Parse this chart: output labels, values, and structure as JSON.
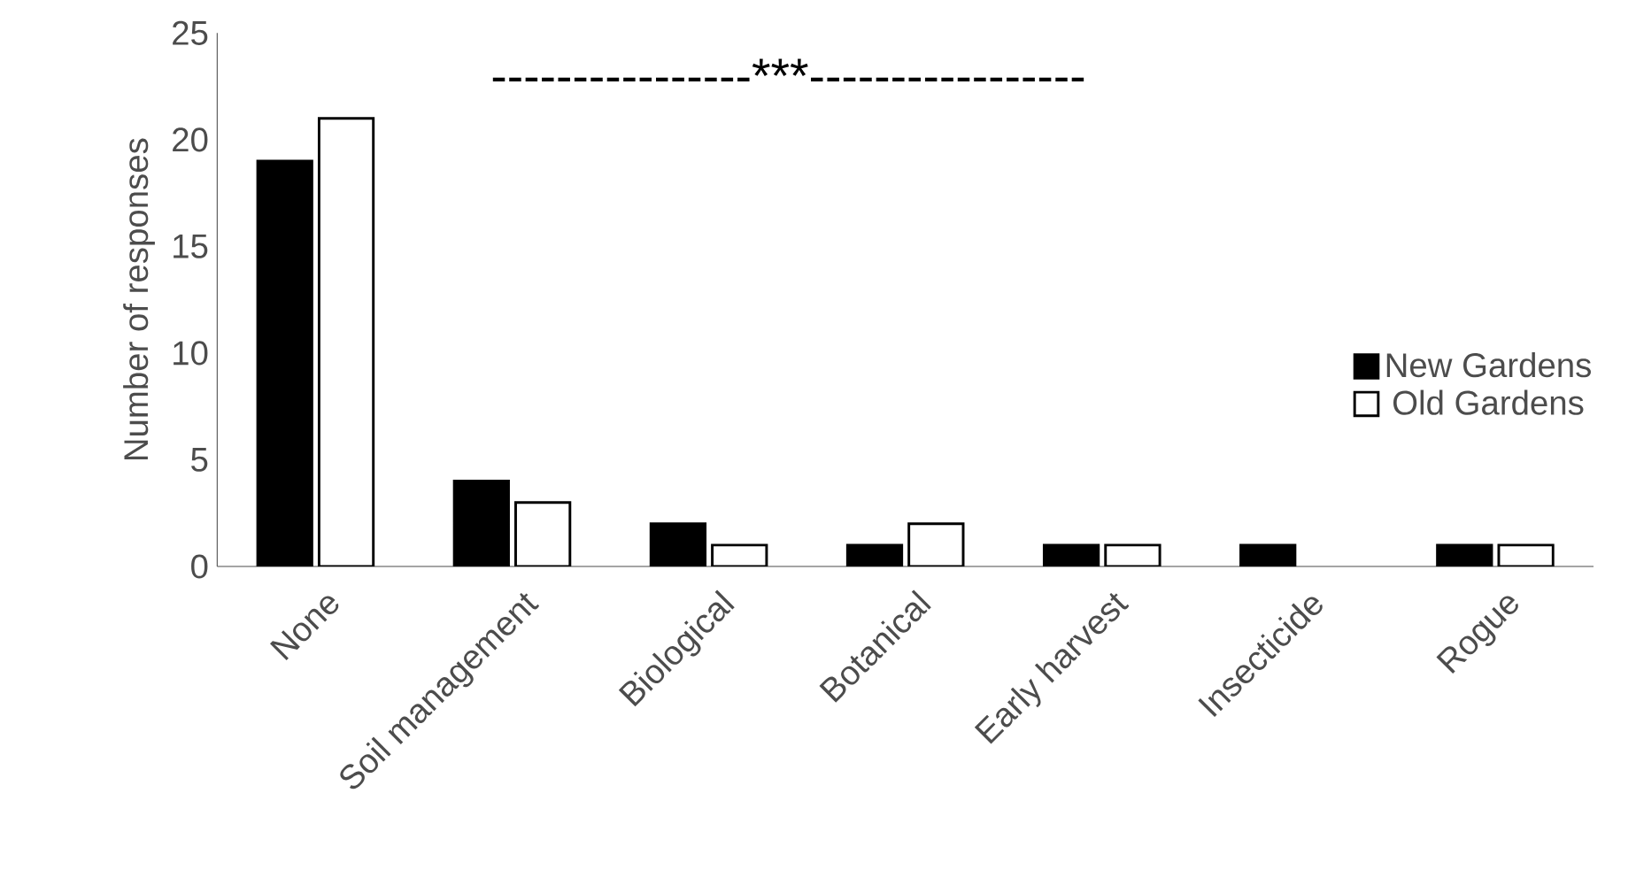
{
  "chart_data": {
    "type": "bar",
    "ylabel": "Number of responses",
    "categories": [
      "None",
      "Soil management",
      "Biological",
      "Botanical",
      "Early harvest",
      "Insecticide",
      "Rogue"
    ],
    "series": [
      {
        "name": "New Gardens",
        "color": "#000000",
        "values": [
          19,
          4,
          2,
          1,
          1,
          1,
          1
        ]
      },
      {
        "name": "Old Gardens",
        "color": "#ffffff",
        "values": [
          21,
          3,
          1,
          2,
          1,
          0,
          1
        ]
      }
    ],
    "ylim": [
      0,
      25
    ],
    "yticks": [
      0,
      5,
      10,
      15,
      20,
      25
    ],
    "grid": false,
    "legend": "right",
    "annotations": [
      "----------------***-----------------"
    ]
  }
}
